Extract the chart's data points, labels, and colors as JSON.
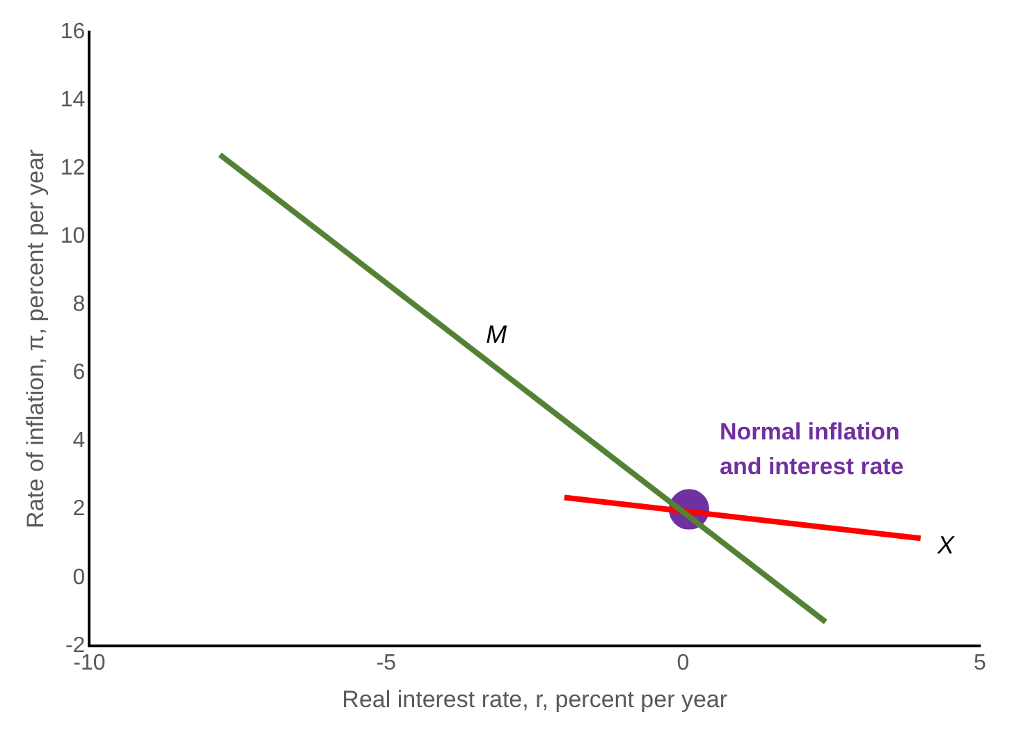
{
  "chart_data": {
    "type": "line",
    "xlabel": "Real interest rate, r, percent per year",
    "ylabel": "Rate of inflation, π, percent per year",
    "xlim": [
      -10,
      5
    ],
    "xticks": [
      -10,
      -5,
      0,
      5
    ],
    "ylim": [
      -2,
      16
    ],
    "yticks": [
      -2,
      0,
      2,
      4,
      6,
      8,
      10,
      12,
      14,
      16
    ],
    "grid": false,
    "legend": false,
    "series": [
      {
        "name": "M",
        "color": "#548235",
        "x": [
          -7.8,
          2.4
        ],
        "values": [
          12.4,
          -1.3
        ],
        "marker": "none"
      },
      {
        "name": "X",
        "color": "#ff0000",
        "x": [
          -2,
          4
        ],
        "values": [
          2.35,
          1.15
        ],
        "marker": "none"
      },
      {
        "name": "Normal inflation and interest rate",
        "type": "scatter",
        "color": "#7030a0",
        "x": [
          0.1
        ],
        "values": [
          2
        ],
        "marker": "circle"
      }
    ]
  }
}
